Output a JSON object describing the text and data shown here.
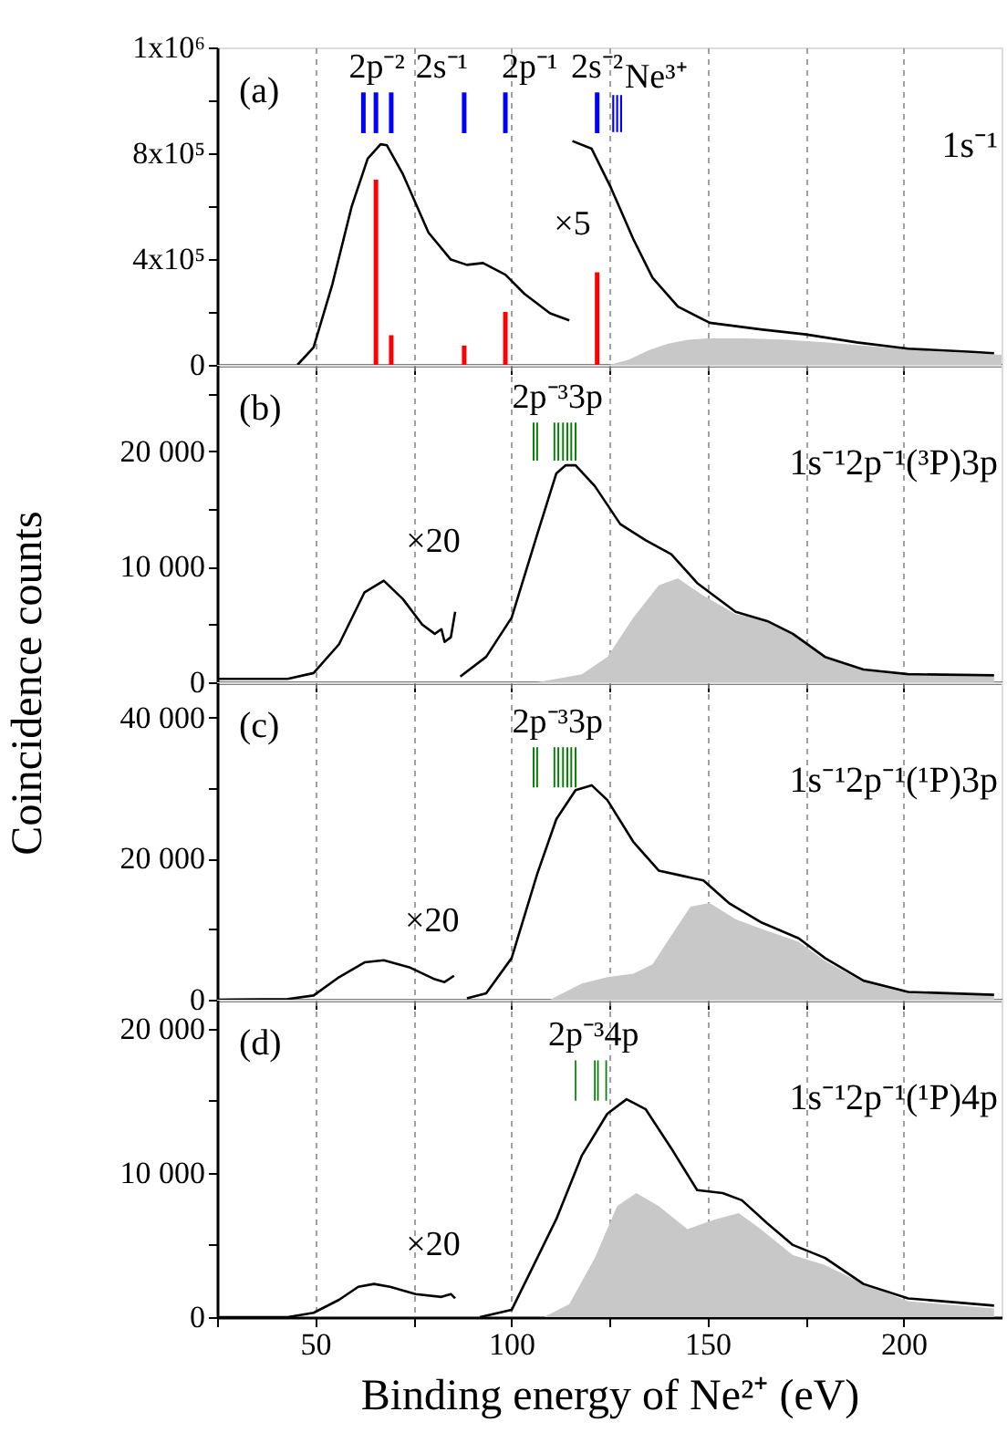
{
  "chart_data": [
    {
      "type": "line",
      "title": "(a)",
      "subtitle": "1s⁻¹",
      "xlim": [
        25,
        225
      ],
      "ylim": [
        0,
        1200000
      ],
      "xticks": [
        {
          "value": 25,
          "label": null
        },
        50,
        {
          "value": 75,
          "label": null
        },
        100,
        {
          "value": 125,
          "label": null
        },
        150,
        {
          "value": 175,
          "label": null
        },
        200
      ],
      "yticks": [
        0,
        {
          "value": 200000,
          "label": null
        },
        {
          "value": 400000,
          "label": "4x10⁵"
        },
        {
          "value": 600000,
          "label": null
        },
        {
          "value": 800000,
          "label": "8x10⁵"
        },
        {
          "value": 1000000,
          "label": null
        },
        {
          "value": 1200000,
          "label": "1x10⁶"
        }
      ],
      "tick_labels": "y",
      "grid": "x",
      "series": [
        {
          "type": "area",
          "color": "#c8c8c8",
          "x": [
            125,
            130,
            135,
            140,
            145,
            150,
            160,
            170,
            180,
            190,
            200,
            210,
            225
          ],
          "values": [
            0,
            20000,
            55000,
            80000,
            95000,
            100000,
            100000,
            95000,
            85000,
            72000,
            60000,
            50000,
            38000
          ]
        },
        {
          "color": "#000000",
          "x": [
            45.5,
            49.6,
            54.4,
            59.3,
            63.4,
            66.7,
            68.3,
            72.4,
            78.9,
            84.6,
            88.7,
            92.8,
            98.5,
            103.4,
            109.9,
            114.8
          ],
          "values": [
            0,
            66000,
            305000,
            598000,
            780000,
            834000,
            830000,
            720000,
            500000,
            398000,
            378000,
            385000,
            341000,
            268000,
            195000,
            168000
          ]
        },
        {
          "name": "×5",
          "color": "#000000",
          "x": [
            115.6,
            120.5,
            125.4,
            131.1,
            136,
            142.5,
            150.6,
            163.6,
            175.1,
            188.1,
            201.2,
            217.5,
            223.1
          ],
          "values": [
            846000,
            817000,
            670000,
            476000,
            330000,
            220000,
            159000,
            134000,
            115000,
            85000,
            61000,
            49000,
            44000
          ]
        },
        {
          "type": "bar",
          "color": "#ff0000",
          "x": [
            65.5,
            69.4,
            88,
            98.5,
            121.9
          ],
          "values": [
            700000,
            112000,
            73000,
            200000,
            350000
          ]
        },
        {
          "type": "bar",
          "name": "2p⁻²",
          "color": "#0000ff",
          "x": [
            62.3,
            65.5,
            69.4
          ],
          "base": [
            876000,
            876000,
            876000
          ],
          "values": [
            154000,
            154000,
            154000
          ]
        },
        {
          "type": "bar",
          "name": "2s⁻¹",
          "color": "#0000ff",
          "x": [
            88
          ],
          "base": [
            876000
          ],
          "values": [
            154000
          ]
        },
        {
          "type": "bar",
          "name": "2p⁻¹",
          "color": "#0000ff",
          "x": [
            98.5
          ],
          "base": [
            876000
          ],
          "values": [
            154000
          ]
        },
        {
          "type": "bar",
          "name": "2s⁻²",
          "color": "#0000ff",
          "x": [
            121.9
          ],
          "base": [
            876000
          ],
          "values": [
            154000
          ]
        },
        {
          "type": "bar",
          "name": "Ne³⁺",
          "color": "#0000ff",
          "x": [
            126,
            127,
            128
          ],
          "base": [
            880000,
            880000,
            880000
          ],
          "values": [
            140000,
            140000,
            140000
          ]
        }
      ]
    },
    {
      "type": "line",
      "title": "(b)",
      "subtitle": "1s⁻¹2p⁻¹(³P)3p",
      "ylabel": "Coincidence counts",
      "xlim": [
        25,
        225
      ],
      "ylim": [
        0,
        27500
      ],
      "xticks": [
        {
          "value": 25,
          "label": null
        },
        50,
        {
          "value": 75,
          "label": null
        },
        100,
        {
          "value": 125,
          "label": null
        },
        150,
        {
          "value": 175,
          "label": null
        },
        200
      ],
      "yticks": [
        0,
        {
          "value": 5000,
          "label": null
        },
        {
          "value": 10000,
          "label": "10 000"
        },
        {
          "value": 15000,
          "label": null
        },
        {
          "value": 20000,
          "label": "20 000"
        },
        {
          "value": 25000,
          "label": null
        }
      ],
      "tick_labels": "y",
      "grid": "x",
      "series": [
        {
          "type": "area",
          "color": "#c8c8c8",
          "x": [
            106.6,
            118,
            124.5,
            131.1,
            137.6,
            142.5,
            149,
            157.2,
            165.3,
            171.8,
            180,
            189.8,
            201.2,
            223.1
          ],
          "values": [
            0,
            700,
            2200,
            5600,
            8400,
            9000,
            7500,
            5900,
            5300,
            4200,
            2200,
            1000,
            600,
            500
          ]
        },
        {
          "name": "×20",
          "color": "#000000",
          "x": [
            25,
            43,
            49.6,
            56.1,
            62.6,
            67.5,
            72.4,
            77.3,
            80.5,
            82.2,
            83,
            84.6,
            85.7
          ],
          "values": [
            300,
            300,
            800,
            3300,
            7800,
            8800,
            7200,
            5000,
            4200,
            4600,
            3500,
            3900,
            6100
          ]
        },
        {
          "color": "#000000",
          "x": [
            87,
            93.6,
            100.1,
            106.6,
            111.5,
            113.9,
            116.4,
            121.3,
            127.8,
            134.3,
            140.8,
            147.4,
            157.2,
            165.3,
            171.8,
            180,
            189.8,
            201.2,
            223.1
          ],
          "values": [
            500,
            2200,
            5600,
            12800,
            18100,
            18800,
            18800,
            17000,
            13700,
            12300,
            11100,
            8600,
            6100,
            5300,
            4200,
            2200,
            1100,
            700,
            600
          ]
        },
        {
          "type": "bar",
          "name": "2p⁻³3p",
          "color": "#008000",
          "x": [
            105.7,
            106.6,
            111,
            112,
            113.2,
            114.3,
            115.3,
            116.4
          ],
          "base": [
            19200,
            19200,
            19200,
            19200,
            19200,
            19200,
            19200,
            19200
          ],
          "values": [
            3300,
            3300,
            3300,
            3300,
            3300,
            3300,
            3300,
            3300
          ]
        }
      ]
    },
    {
      "type": "line",
      "title": "(c)",
      "subtitle": "1s⁻¹2p⁻¹(¹P)3p",
      "xlim": [
        25,
        225
      ],
      "ylim": [
        0,
        45000
      ],
      "xticks": [
        {
          "value": 25,
          "label": null
        },
        50,
        {
          "value": 75,
          "label": null
        },
        100,
        {
          "value": 125,
          "label": null
        },
        150,
        {
          "value": 175,
          "label": null
        },
        200
      ],
      "yticks": [
        0,
        {
          "value": 10000,
          "label": null
        },
        {
          "value": 20000,
          "label": "20 000"
        },
        {
          "value": 30000,
          "label": null
        },
        {
          "value": 40000,
          "label": "40 000"
        }
      ],
      "tick_labels": "y",
      "grid": "x",
      "series": [
        {
          "type": "area",
          "color": "#c8c8c8",
          "x": [
            109.9,
            118,
            124.5,
            131.1,
            136,
            140.8,
            145.7,
            150.6,
            157.2,
            163.6,
            173.3,
            180,
            189.8,
            201.2,
            223.1
          ],
          "values": [
            0,
            2300,
            3200,
            3700,
            5000,
            9100,
            13200,
            13700,
            11400,
            10100,
            8200,
            5500,
            2500,
            900,
            600
          ]
        },
        {
          "name": "×20",
          "color": "#000000",
          "x": [
            25,
            43,
            49.6,
            56.1,
            62.6,
            67.5,
            74,
            80.5,
            83,
            85.4
          ],
          "values": [
            0,
            100,
            600,
            3200,
            5300,
            5600,
            4600,
            2900,
            2500,
            3400
          ]
        },
        {
          "color": "#000000",
          "x": [
            88.7,
            93.6,
            100.1,
            106.6,
            111.5,
            116.4,
            120.5,
            124.5,
            131.1,
            137.6,
            143.3,
            149,
            155.5,
            163.6,
            173.3,
            180,
            189.8,
            201.2,
            223.1
          ],
          "values": [
            200,
            900,
            5900,
            17800,
            25600,
            29700,
            30400,
            28300,
            22400,
            18300,
            17600,
            16900,
            13700,
            11000,
            8700,
            5900,
            2700,
            1100,
            700
          ]
        },
        {
          "type": "bar",
          "name": "2p⁻³3p",
          "color": "#008000",
          "x": [
            105.7,
            106.6,
            111,
            112,
            113.2,
            114.3,
            115.3,
            116.4
          ],
          "base": [
            30100,
            30100,
            30100,
            30100,
            30100,
            30100,
            30100,
            30100
          ],
          "values": [
            5700,
            5700,
            5700,
            5700,
            5700,
            5700,
            5700,
            5700
          ]
        }
      ]
    },
    {
      "type": "line",
      "title": "(d)",
      "subtitle": "1s⁻¹2p⁻¹(¹P)4p",
      "xlabel": "Binding energy of Ne²⁺ (eV)",
      "xlim": [
        25,
        225
      ],
      "ylim": [
        0,
        22000
      ],
      "xticks": [
        {
          "value": 25,
          "label": null
        },
        50,
        {
          "value": 75,
          "label": null
        },
        100,
        {
          "value": 125,
          "label": null
        },
        150,
        {
          "value": 175,
          "label": null
        },
        200
      ],
      "yticks": [
        0,
        {
          "value": 5000,
          "label": null
        },
        {
          "value": 10000,
          "label": "10 000"
        },
        {
          "value": 15000,
          "label": null
        },
        {
          "value": 20000,
          "label": "20 000"
        }
      ],
      "grid": "x",
      "series": [
        {
          "type": "area",
          "color": "#c8c8c8",
          "x": [
            108.3,
            114.8,
            121.3,
            127,
            131.9,
            137.6,
            144.9,
            152.3,
            158,
            163.6,
            171.8,
            180,
            189.8,
            201.2,
            223.1
          ],
          "values": [
            0,
            900,
            4100,
            7700,
            8600,
            7700,
            6100,
            6800,
            7200,
            6100,
            4300,
            3600,
            2300,
            1100,
            600
          ]
        },
        {
          "name": "×20",
          "color": "#000000",
          "x": [
            25,
            43,
            49.6,
            56.1,
            61,
            65,
            69.1,
            75.6,
            82.2,
            84.6,
            85.7
          ],
          "values": [
            0,
            0,
            300,
            1200,
            2100,
            2300,
            2100,
            1600,
            1400,
            1600,
            1300
          ]
        },
        {
          "color": "#000000",
          "x": [
            92,
            100.1,
            105,
            111.5,
            118,
            124.5,
            129.4,
            134.3,
            140.8,
            147.4,
            153.9,
            158.8,
            165.3,
            171.8,
            180,
            189.8,
            201.2,
            223.1
          ],
          "values": [
            0,
            500,
            3200,
            6800,
            11200,
            14100,
            15100,
            14400,
            11700,
            8800,
            8600,
            8100,
            6500,
            5000,
            4100,
            2300,
            1300,
            800
          ]
        },
        {
          "type": "bar",
          "name": "2p⁻³4p",
          "color": "#008000",
          "x": [
            116.4,
            121.3,
            122.1,
            124.2
          ],
          "base": [
            15000,
            15000,
            15000,
            15000
          ],
          "values": [
            2800,
            2800,
            2800,
            2800
          ]
        }
      ]
    }
  ]
}
